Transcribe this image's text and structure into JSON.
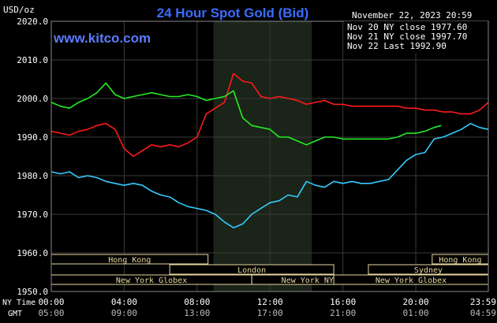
{
  "header": {
    "title": "24 Hour Spot Gold (Bid)",
    "unit": "USD/oz",
    "date_time": "November 22, 2023 20:59",
    "brand": "www.kitco.com"
  },
  "legend": [
    {
      "label": "Nov 20 NY close 1977.60",
      "color": "#33ccff"
    },
    {
      "label": "Nov 21 NY close 1997.70",
      "color": "#ff1a1a"
    },
    {
      "label": "Nov 22 Last 1992.90",
      "color": "#22ee22"
    }
  ],
  "axis_rows": {
    "ny_time_label": "NY Time",
    "gmt_label": "GMT"
  },
  "sessions": [
    {
      "name": "Hong Kong"
    },
    {
      "name": "London"
    },
    {
      "name": "New York Globex"
    },
    {
      "name": "New York NYMEX"
    },
    {
      "name": "NY Globex"
    },
    {
      "name": "Hong Kong"
    },
    {
      "name": "Sydney"
    },
    {
      "name": "New York Globex"
    }
  ],
  "chart_data": {
    "type": "line",
    "title": "24 Hour Spot Gold (Bid)",
    "ylabel": "USD/oz",
    "ylim": [
      1950,
      2020
    ],
    "y_ticks": [
      "2020.0",
      "2010.0",
      "2000.0",
      "1990.0",
      "1980.0",
      "1970.0",
      "1960.0",
      "1950.0"
    ],
    "x_ticks_ny": [
      "00:00",
      "04:00",
      "08:00",
      "12:00",
      "16:00",
      "20:00",
      "23:59"
    ],
    "x_ticks_gmt": [
      "05:00",
      "09:00",
      "13:00",
      "17:00",
      "21:00",
      "01:00",
      "04:59"
    ],
    "xlim_hours": [
      0,
      23.98
    ],
    "grid": true,
    "highlight_hours": [
      8.9,
      14.3
    ],
    "series": [
      {
        "name": "Nov 20 NY close 1977.60",
        "color": "#33ccff",
        "x": [
          0,
          0.5,
          1,
          1.5,
          2,
          2.5,
          3,
          3.5,
          4,
          4.5,
          5,
          5.5,
          6,
          6.5,
          7,
          7.5,
          8,
          8.5,
          9,
          9.5,
          10,
          10.5,
          11,
          11.5,
          12,
          12.5,
          13,
          13.5,
          14,
          14.5,
          15,
          15.5,
          16,
          16.5,
          17,
          17.5,
          18,
          18.5,
          19,
          19.5,
          20,
          20.5,
          21,
          21.5,
          22,
          22.5,
          23,
          23.5,
          23.98
        ],
        "y": [
          1981,
          1980.5,
          1981,
          1979.5,
          1980,
          1979.5,
          1978.5,
          1978,
          1977.5,
          1978,
          1977.5,
          1976,
          1975,
          1974.5,
          1973,
          1972,
          1971.5,
          1971,
          1970,
          1968,
          1966.5,
          1967.5,
          1970,
          1971.5,
          1973,
          1973.5,
          1975,
          1974.5,
          1978.5,
          1977.5,
          1977,
          1978.5,
          1978,
          1978.5,
          1978,
          1978,
          1978.5,
          1979,
          1981.5,
          1984,
          1985.5,
          1986,
          1989.5,
          1990,
          1991,
          1992,
          1993.5,
          1992.5,
          1992
        ]
      },
      {
        "name": "Nov 21 NY close 1997.70",
        "color": "#ff1a1a",
        "x": [
          0,
          0.5,
          1,
          1.5,
          2,
          2.5,
          3,
          3.5,
          4,
          4.5,
          5,
          5.5,
          6,
          6.5,
          7,
          7.5,
          8,
          8.5,
          9,
          9.5,
          10,
          10.5,
          11,
          11.5,
          12,
          12.5,
          13,
          13.5,
          14,
          14.5,
          15,
          15.5,
          16,
          16.5,
          17,
          17.5,
          18,
          18.5,
          19,
          19.5,
          20,
          20.5,
          21,
          21.5,
          22,
          22.5,
          23,
          23.5,
          23.98
        ],
        "y": [
          1991.5,
          1991,
          1990.5,
          1991.5,
          1992,
          1993,
          1993.5,
          1992,
          1987,
          1985,
          1986.5,
          1988,
          1987.5,
          1988,
          1987.5,
          1988.5,
          1990,
          1996,
          1997.5,
          1999,
          2006.5,
          2004.5,
          2004,
          2000.5,
          2000,
          2000.5,
          2000,
          1999.5,
          1998.5,
          1999,
          1999.5,
          1998.5,
          1998.5,
          1998,
          1998,
          1998,
          1998,
          1998,
          1998,
          1997.5,
          1997.5,
          1997,
          1997,
          1996.5,
          1996.5,
          1996,
          1996,
          1997,
          1999
        ]
      },
      {
        "name": "Nov 22 Last 1992.90",
        "color": "#22ee22",
        "x": [
          0,
          0.5,
          1,
          1.5,
          2,
          2.5,
          3,
          3.5,
          4,
          4.5,
          5,
          5.5,
          6,
          6.5,
          7,
          7.5,
          8,
          8.5,
          9,
          9.5,
          10,
          10.5,
          11,
          11.5,
          12,
          12.5,
          13,
          13.5,
          14,
          14.5,
          15,
          15.5,
          16,
          16.5,
          17,
          17.5,
          18,
          18.5,
          19,
          19.5,
          20,
          20.5,
          21,
          21.4
        ],
        "y": [
          1999,
          1998,
          1997.5,
          1999,
          2000,
          2001.5,
          2004,
          2001,
          2000,
          2000.5,
          2001,
          2001.5,
          2001,
          2000.5,
          2000.5,
          2001,
          2000.5,
          1999.5,
          2000,
          2000.5,
          2002,
          1995,
          1993,
          1992.5,
          1992,
          1990,
          1990,
          1989,
          1988,
          1989,
          1990,
          1990,
          1989.5,
          1989.5,
          1989.5,
          1989.5,
          1989.5,
          1989.5,
          1990,
          1991,
          1991,
          1991.5,
          1992.5,
          1993
        ]
      }
    ]
  }
}
